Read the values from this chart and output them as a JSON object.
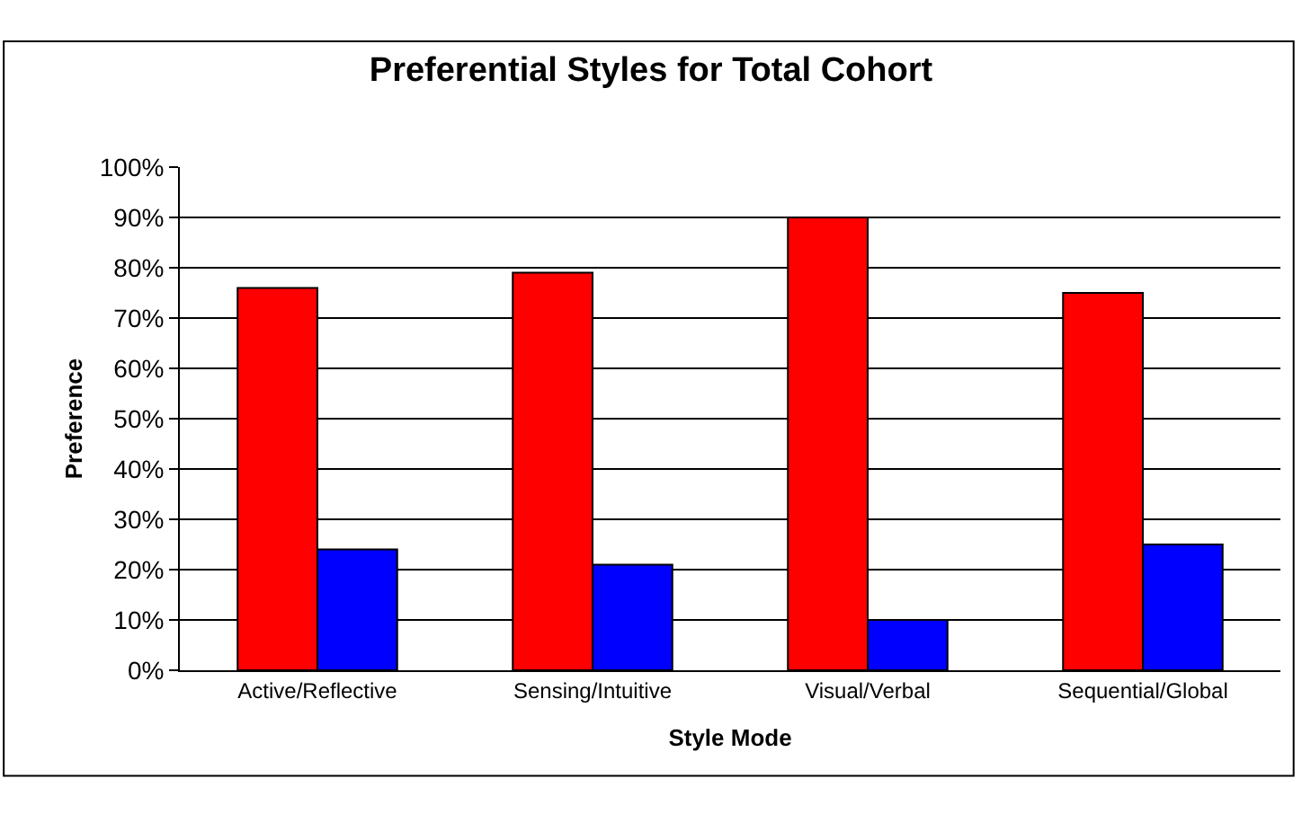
{
  "chart_data": {
    "type": "bar",
    "title": "Preferential Styles for Total Cohort",
    "xlabel": "Style Mode",
    "ylabel": "Preference",
    "categories": [
      "Active/Reflective",
      "Sensing/Intuitive",
      "Visual/Verbal",
      "Sequential/Global"
    ],
    "series": [
      {
        "color": "#ff0000",
        "values": [
          76,
          79,
          90,
          75
        ]
      },
      {
        "color": "#0000ff",
        "values": [
          24,
          21,
          10,
          25
        ]
      }
    ],
    "ylim": [
      0,
      100
    ],
    "yticks": [
      {
        "value": 0,
        "label": "0%"
      },
      {
        "value": 10,
        "label": "10%"
      },
      {
        "value": 20,
        "label": "20%"
      },
      {
        "value": 30,
        "label": "30%"
      },
      {
        "value": 40,
        "label": "40%"
      },
      {
        "value": 50,
        "label": "50%"
      },
      {
        "value": 60,
        "label": "60%"
      },
      {
        "value": 70,
        "label": "70%"
      },
      {
        "value": 80,
        "label": "80%"
      },
      {
        "value": 90,
        "label": "90%"
      },
      {
        "value": 100,
        "label": "100%"
      }
    ],
    "grid": "y"
  }
}
